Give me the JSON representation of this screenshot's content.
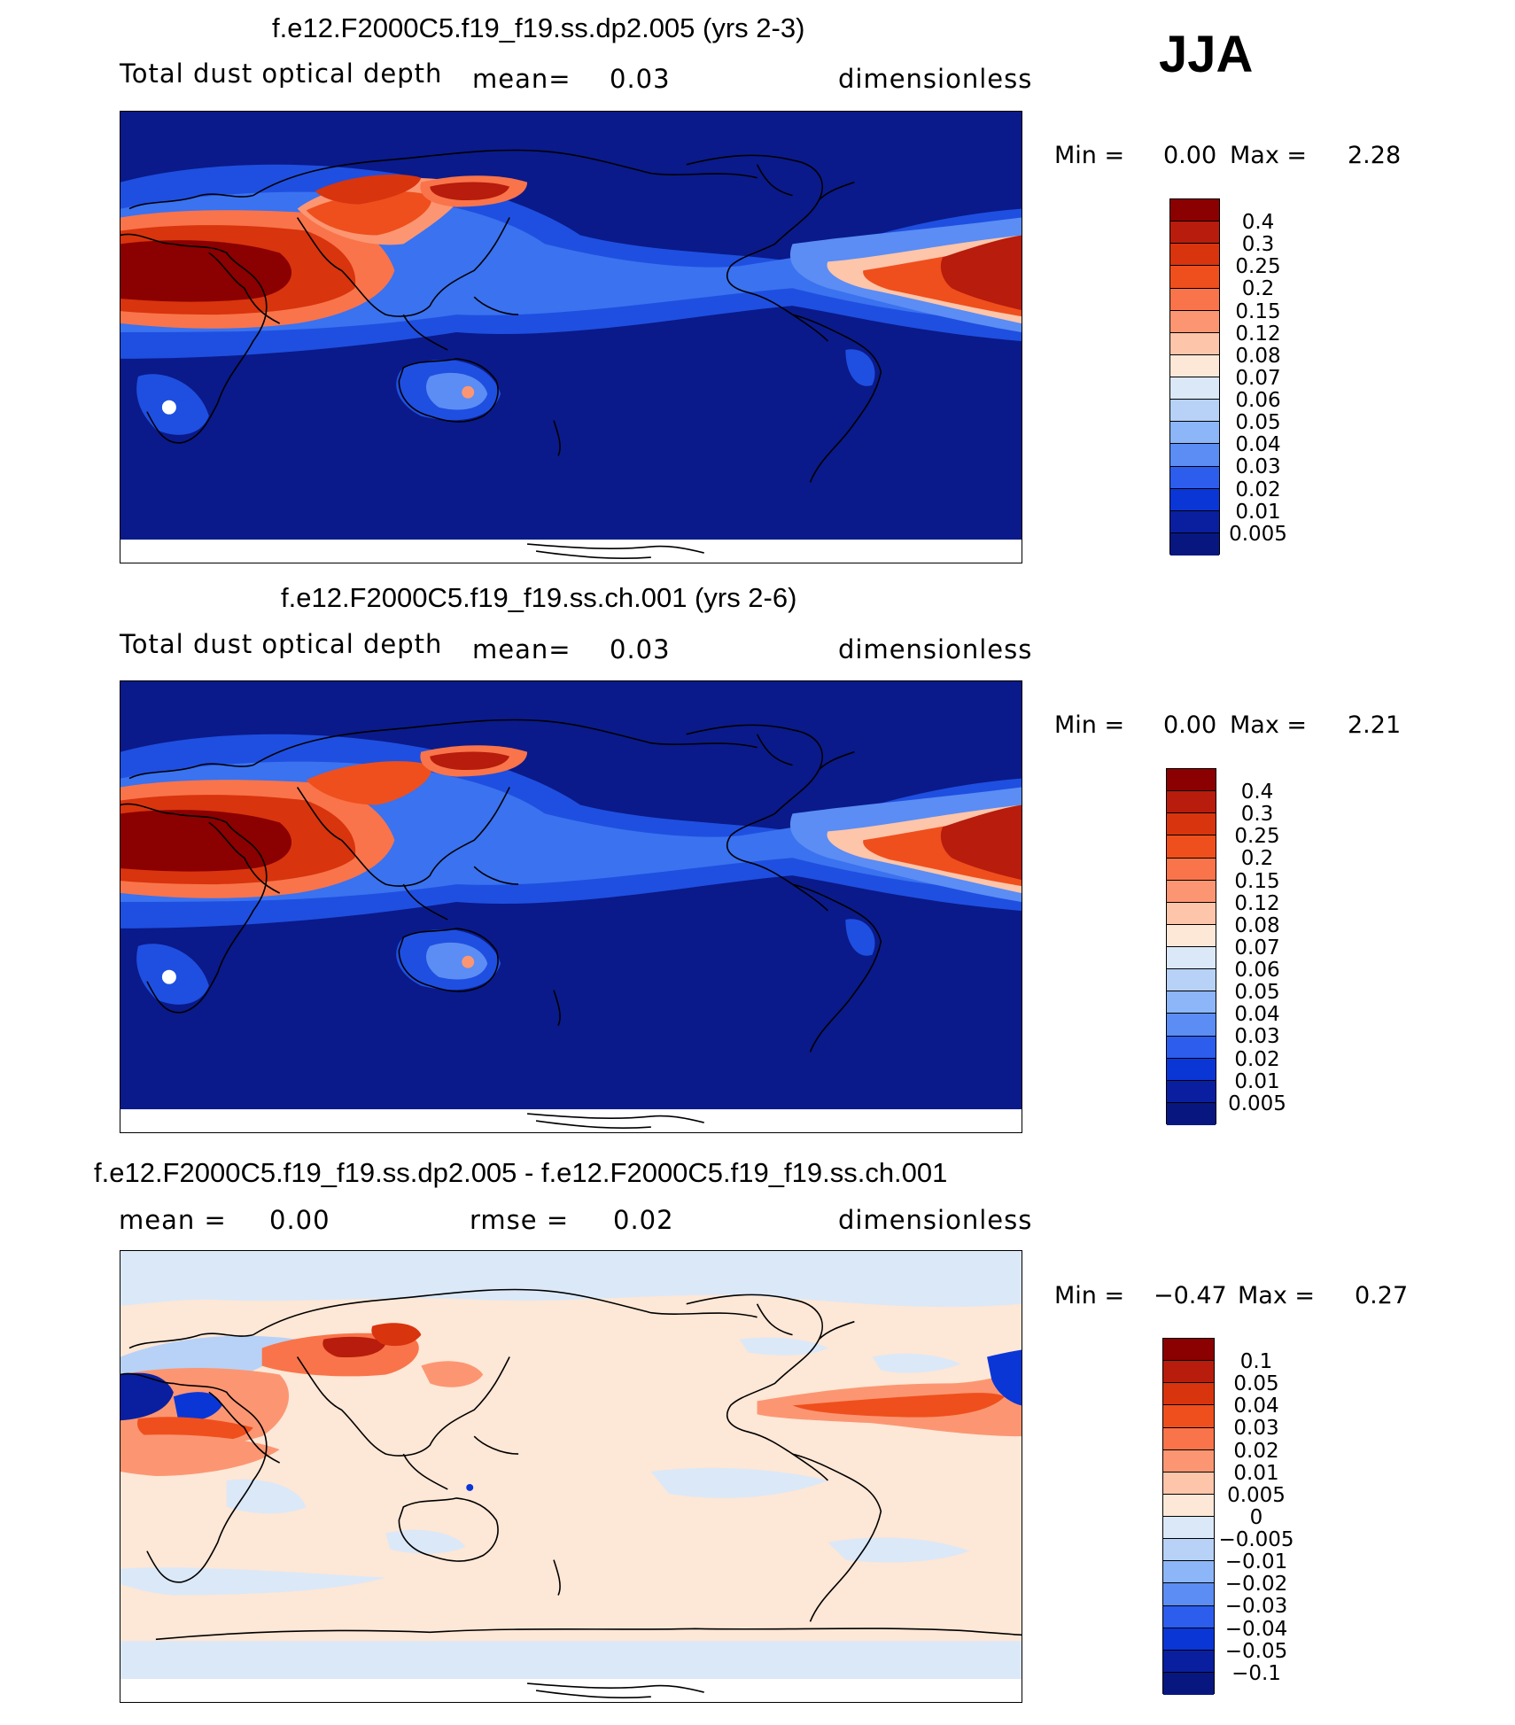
{
  "season": "JJA",
  "colors": {
    "ocean": "#0a1a8a",
    "ocean_diff": "#fde7d6",
    "coast": "#000000"
  },
  "panels": [
    {
      "title": "f.e12.F2000C5.f19_f19.ss.dp2.005 (yrs 2-3)",
      "left": "Total dust optical depth",
      "mid_label": "mean=",
      "mid_value": "0.03",
      "right": "dimensionless",
      "min_label": "Min =",
      "min_value": "0.00",
      "max_label": "Max =",
      "max_value": "2.28",
      "legend": [
        "0.4",
        "0.3",
        "0.25",
        "0.2",
        "0.15",
        "0.12",
        "0.08",
        "0.07",
        "0.06",
        "0.05",
        "0.04",
        "0.03",
        "0.02",
        "0.01",
        "0.005"
      ],
      "legend_colors": [
        "#8b0000",
        "#b71c0c",
        "#d8340e",
        "#ef4f1d",
        "#f9744a",
        "#fc9672",
        "#fdc5aa",
        "#fde8d8",
        "#dbe8f8",
        "#b7d2f6",
        "#8cb6f7",
        "#5b8df4",
        "#2c5ded",
        "#0a36d6",
        "#0a1f9f",
        "#081780"
      ]
    },
    {
      "title": "f.e12.F2000C5.f19_f19.ss.ch.001 (yrs 2-6)",
      "left": "Total dust optical depth",
      "mid_label": "mean=",
      "mid_value": "0.03",
      "right": "dimensionless",
      "min_label": "Min =",
      "min_value": "0.00",
      "max_label": "Max =",
      "max_value": "2.21",
      "legend": [
        "0.4",
        "0.3",
        "0.25",
        "0.2",
        "0.15",
        "0.12",
        "0.08",
        "0.07",
        "0.06",
        "0.05",
        "0.04",
        "0.03",
        "0.02",
        "0.01",
        "0.005"
      ],
      "legend_colors": [
        "#8b0000",
        "#b71c0c",
        "#d8340e",
        "#ef4f1d",
        "#f9744a",
        "#fc9672",
        "#fdc5aa",
        "#fde8d8",
        "#dbe8f8",
        "#b7d2f6",
        "#8cb6f7",
        "#5b8df4",
        "#2c5ded",
        "#0a36d6",
        "#0a1f9f",
        "#081780"
      ]
    },
    {
      "title": "f.e12.F2000C5.f19_f19.ss.dp2.005 - f.e12.F2000C5.f19_f19.ss.ch.001",
      "left": "mean =",
      "left_value": "0.00",
      "mid_label": "rmse =",
      "mid_value": "0.02",
      "right": "dimensionless",
      "min_label": "Min =",
      "min_value": "−0.47",
      "max_label": "Max =",
      "max_value": "0.27",
      "legend": [
        "0.1",
        "0.05",
        "0.04",
        "0.03",
        "0.02",
        "0.01",
        "0.005",
        "0",
        "−0.005",
        "−0.01",
        "−0.02",
        "−0.03",
        "−0.04",
        "−0.05",
        "−0.1"
      ],
      "legend_colors": [
        "#8b0000",
        "#b71c0c",
        "#d8340e",
        "#ef4f1d",
        "#f9744a",
        "#fc9672",
        "#fdc5aa",
        "#fde8d8",
        "#dbe8f8",
        "#b7d2f6",
        "#8cb6f7",
        "#5b8df4",
        "#2c5ded",
        "#0a36d6",
        "#0a1f9f",
        "#081780"
      ]
    }
  ]
}
